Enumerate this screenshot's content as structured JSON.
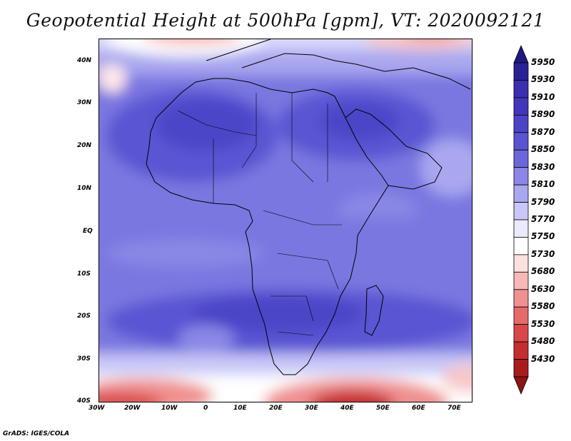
{
  "title": "Geopotential Height at 500hPa [gpm], VT: 2020092121",
  "credit": "GrADS: IGES/COLA",
  "lat_labels": [
    "40N",
    "30N",
    "20N",
    "10N",
    "EQ",
    "10S",
    "20S",
    "30S",
    "40S"
  ],
  "lon_labels": [
    "30W",
    "20W",
    "10W",
    "0",
    "10E",
    "20E",
    "30E",
    "40E",
    "50E",
    "60E",
    "70E"
  ],
  "colorbar": {
    "labels": [
      "5950",
      "5930",
      "5910",
      "5890",
      "5870",
      "5850",
      "5830",
      "5810",
      "5790",
      "5770",
      "5750",
      "5730",
      "5680",
      "5630",
      "5580",
      "5530",
      "5480",
      "5430"
    ],
    "colors": [
      "#2a2096",
      "#3a2fae",
      "#4236bb",
      "#4c44c8",
      "#5a54d2",
      "#6b67da",
      "#8a87e6",
      "#a9a7ef",
      "#c8c7f7",
      "#eaeaff",
      "#ffffff",
      "#ffe0e0",
      "#f8b8b8",
      "#f09090",
      "#e66a6a",
      "#d94848",
      "#c42e2e",
      "#a81c1c"
    ]
  }
}
